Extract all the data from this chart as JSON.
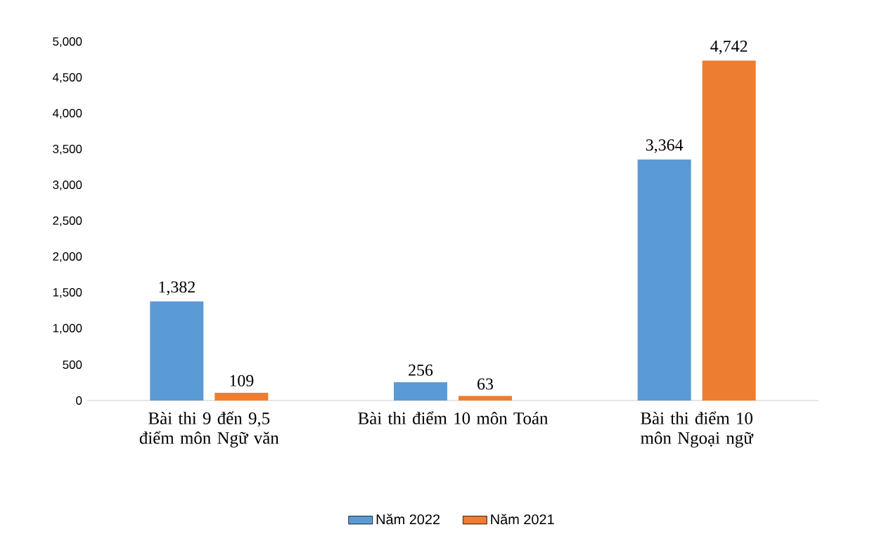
{
  "chart_data": {
    "type": "bar",
    "categories": [
      "Bài thi 9 đến 9,5 điểm môn Ngữ văn",
      "Bài thi điểm 10 môn Toán",
      "Bài thi điểm 10 môn Ngoại ngữ"
    ],
    "series": [
      {
        "name": "Năm 2022",
        "color": "#5b9bd5",
        "values": [
          1382,
          256,
          3364
        ],
        "value_labels": [
          "1,382",
          "256",
          "3,364"
        ]
      },
      {
        "name": "Năm 2021",
        "color": "#ed7d31",
        "values": [
          109,
          63,
          4742
        ],
        "value_labels": [
          "109",
          "63",
          "4,742"
        ]
      }
    ],
    "ylim": [
      0,
      5000
    ],
    "yticks": [
      0,
      500,
      {
        "value": 1000,
        "label": "1,000"
      },
      {
        "value": 1500,
        "label": "1,500"
      },
      {
        "value": 2000,
        "label": "2,000"
      },
      {
        "value": 2500,
        "label": "2,500"
      },
      {
        "value": 3000,
        "label": "3,000"
      },
      {
        "value": 3500,
        "label": "3,500"
      },
      {
        "value": 4000,
        "label": "4,000"
      },
      {
        "value": 4500,
        "label": "4,500"
      },
      {
        "value": 5000,
        "label": "5,000"
      }
    ],
    "legend": "bottom"
  }
}
